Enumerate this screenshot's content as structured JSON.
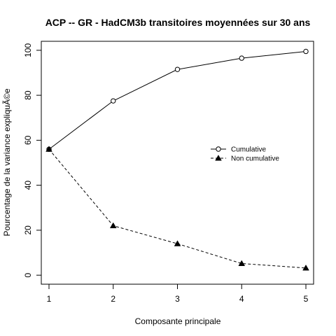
{
  "chart_data": {
    "type": "line",
    "title": "ACP -- GR - HadCM3b transitoires moyennées sur 30 ans",
    "xlabel": "Composante principale",
    "ylabel": "Pourcentage de la variance expliquÃ©e",
    "x": [
      1,
      2,
      3,
      4,
      5
    ],
    "xticks": [
      "1",
      "2",
      "3",
      "4",
      "5"
    ],
    "yticks": [
      "0",
      "20",
      "40",
      "60",
      "80",
      "100"
    ],
    "xlim": [
      0.88,
      5.12
    ],
    "ylim": [
      -4,
      104
    ],
    "grid": false,
    "legend_position": "center-right",
    "series": [
      {
        "name": "Cumulative",
        "values": [
          56,
          77.5,
          91.5,
          96.5,
          99.5
        ],
        "marker": "open-circle",
        "line_style": "solid",
        "color": "#000000"
      },
      {
        "name": "Non cumulative",
        "values": [
          56,
          22,
          14,
          5.2,
          3.2
        ],
        "marker": "filled-triangle",
        "line_style": "dashed",
        "color": "#000000"
      }
    ]
  }
}
